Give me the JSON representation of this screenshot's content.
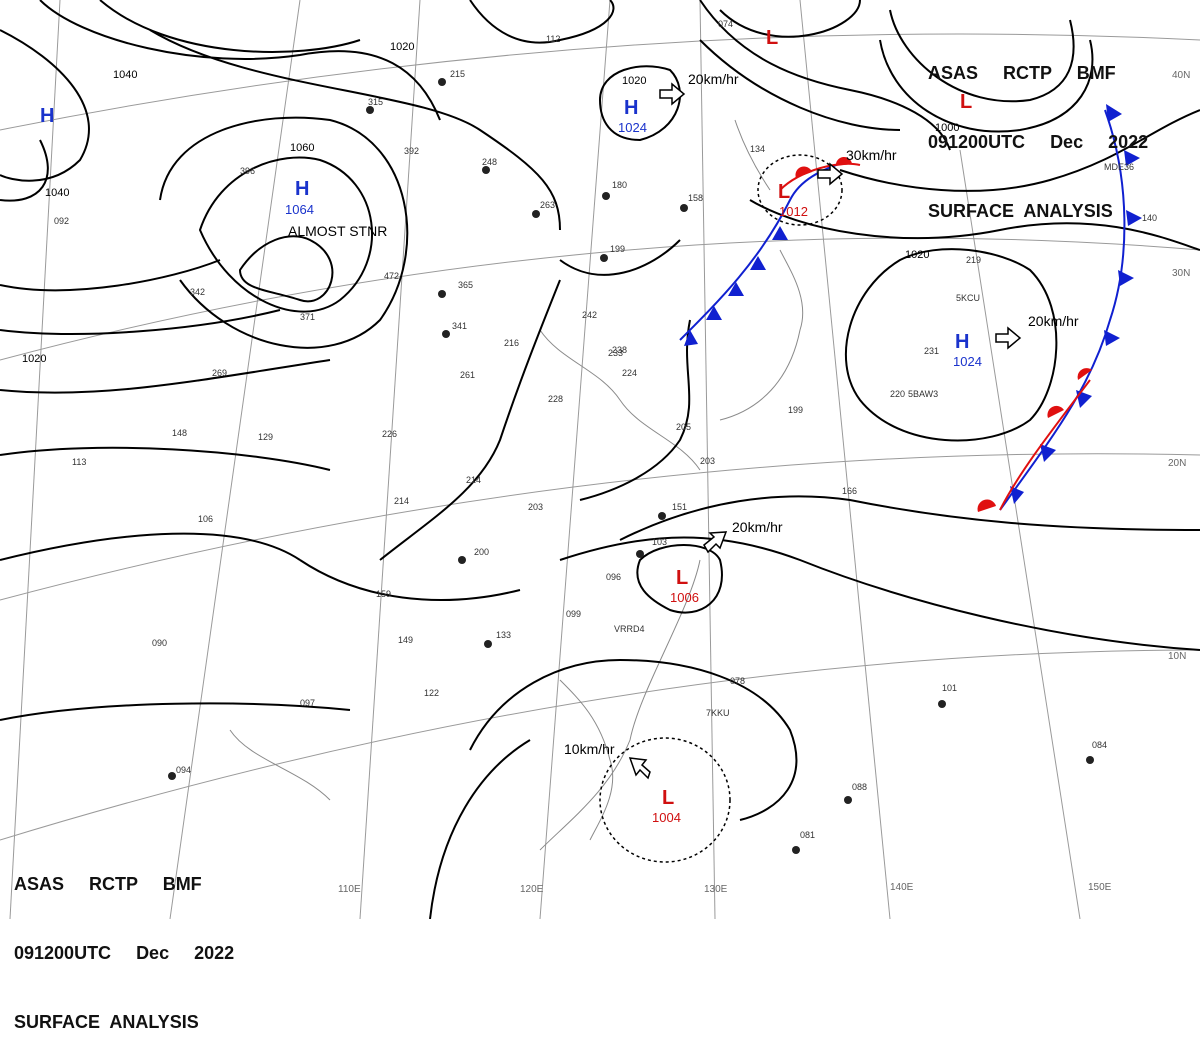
{
  "header": {
    "line1": "ASAS     RCTP     BMF",
    "line2": "091200UTC     Dec     2022",
    "line3": "SURFACE  ANALYSIS"
  },
  "colors": {
    "high": "#1a33cc",
    "low": "#d01010",
    "cold_front": "#1020d0",
    "warm_front": "#e01010",
    "isobar": "#000000",
    "grid": "#9a9a9a",
    "coast": "#8a8a8a"
  },
  "lon_labels": [
    "110E",
    "120E",
    "130E",
    "140E",
    "150E"
  ],
  "lat_labels": [
    "40N",
    "30N",
    "20N",
    "10N"
  ],
  "isobar_labels": [
    "1040",
    "1020",
    "1060",
    "1040",
    "1020",
    "1020",
    "1000",
    "1020"
  ],
  "pressure_centers": [
    {
      "type": "H",
      "value": "1064",
      "note": "ALMOST STNR"
    },
    {
      "type": "H",
      "value": "1024",
      "motion": "20km/hr"
    },
    {
      "type": "H",
      "value": "1024",
      "motion": "20km/hr"
    },
    {
      "type": "H",
      "value": ""
    },
    {
      "type": "L",
      "value": "1012",
      "motion": "30km/hr"
    },
    {
      "type": "L",
      "value": "1006",
      "motion": "20km/hr"
    },
    {
      "type": "L",
      "value": "1004",
      "motion": "10km/hr"
    },
    {
      "type": "L",
      "value": ""
    },
    {
      "type": "L",
      "value": ""
    }
  ],
  "station_labels": [
    "5KCU",
    "5BAW3",
    "VRRD4",
    "7KKU",
    "MDE36"
  ],
  "station_values": [
    "215",
    "315",
    "248",
    "263",
    "180",
    "158",
    "199",
    "472",
    "365",
    "341",
    "261",
    "242",
    "216",
    "238",
    "228",
    "214",
    "203",
    "226",
    "214",
    "133",
    "149",
    "159",
    "122",
    "097",
    "099",
    "096",
    "103",
    "151",
    "200",
    "199",
    "166",
    "231",
    "220",
    "219",
    "101",
    "084",
    "088",
    "081",
    "078",
    "112",
    "074",
    "134",
    "140",
    "113",
    "106",
    "090",
    "094",
    "148",
    "129",
    "269",
    "342",
    "371",
    "396",
    "392",
    "092",
    "233",
    "224",
    "205",
    "203"
  ]
}
